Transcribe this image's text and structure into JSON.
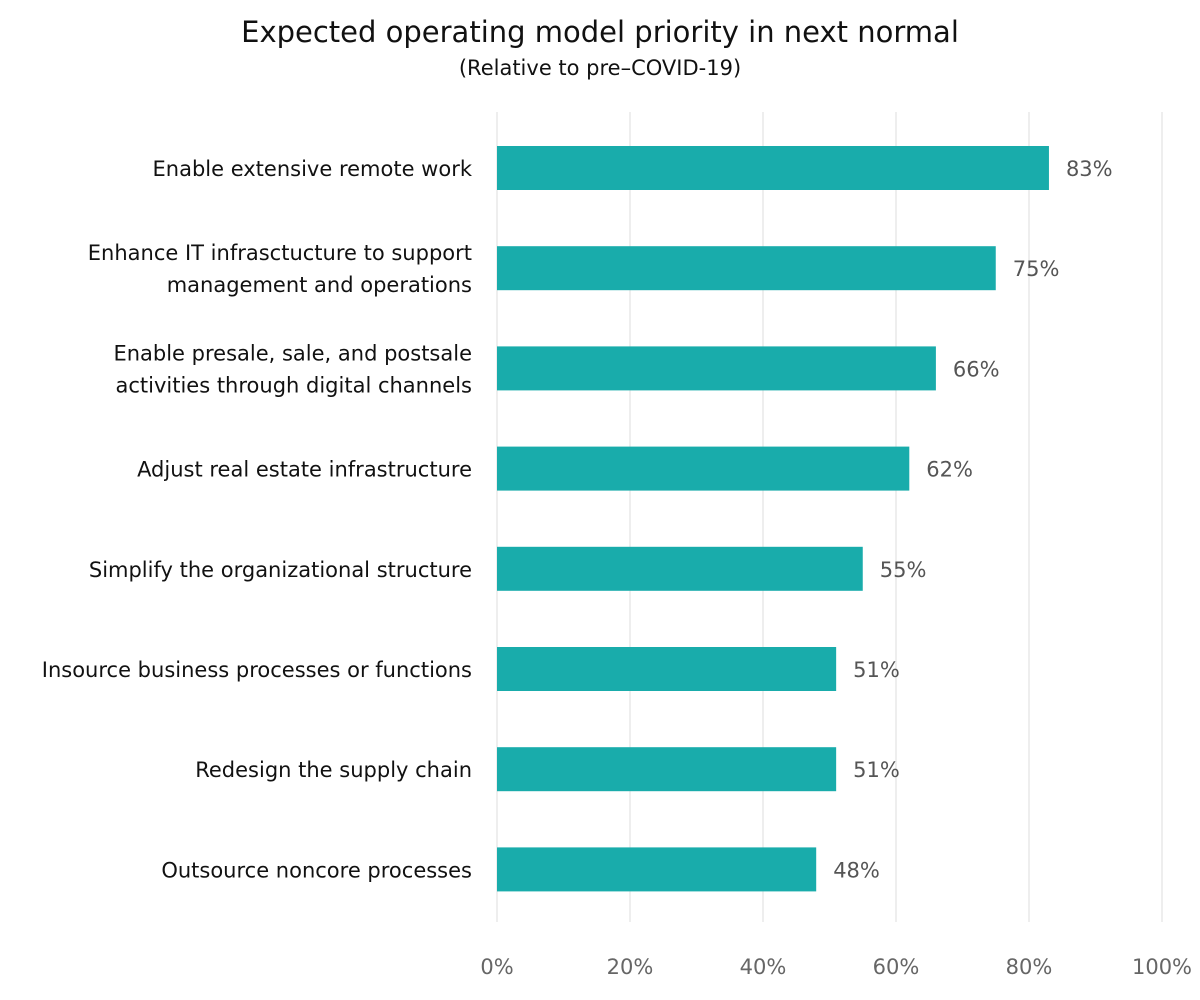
{
  "chart_data": {
    "type": "bar",
    "orientation": "horizontal",
    "title": "Expected operating model priority in next normal",
    "subtitle": "(Relative to pre–COVID-19)",
    "categories": [
      [
        "Enable extensive remote work"
      ],
      [
        "Enhance IT infrasctucture to support",
        "management and operations"
      ],
      [
        "Enable presale, sale, and postsale",
        "activities through digital channels"
      ],
      [
        "Adjust real estate infrastructure"
      ],
      [
        "Simplify the organizational structure"
      ],
      [
        "Insource business processes or functions"
      ],
      [
        "Redesign the supply chain"
      ],
      [
        "Outsource noncore processes"
      ]
    ],
    "values": [
      83,
      75,
      66,
      62,
      55,
      51,
      51,
      48
    ],
    "value_labels": [
      "83%",
      "75%",
      "66%",
      "62%",
      "55%",
      "51%",
      "51%",
      "48%"
    ],
    "xlim": [
      0,
      100
    ],
    "xticks": [
      0,
      20,
      40,
      60,
      80,
      100
    ],
    "xtick_labels": [
      "0%",
      "20%",
      "40%",
      "60%",
      "80%",
      "100%"
    ],
    "grid": true,
    "legend": "none",
    "bar_color": "#19ACAB",
    "grid_color": "#DDDDDD"
  }
}
